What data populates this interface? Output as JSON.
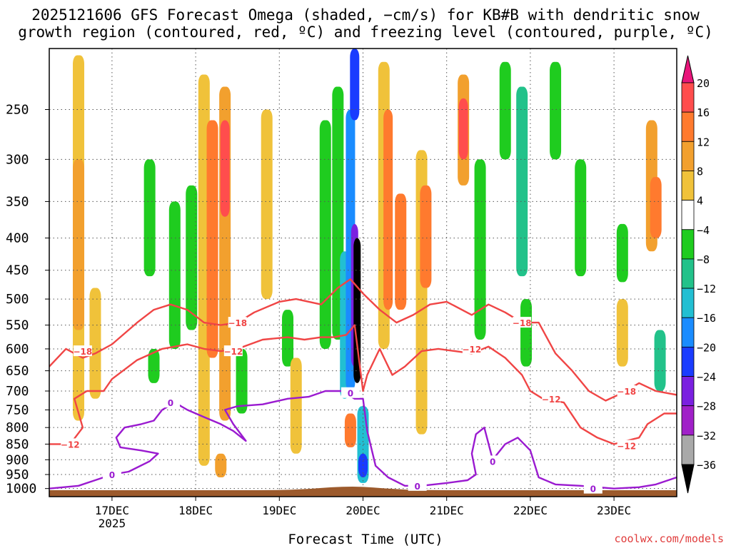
{
  "title_line1": "2025121606 GFS Forecast Omega (shaded, −cm/s) for KB#B with dendritic snow",
  "title_line2": "growth region (contoured, red, ºC) and freezing level (contoured, purple, ºC)",
  "credit": "coolwx.com/models",
  "chart_data": {
    "type": "heatmap",
    "title": "2025121606 GFS Forecast Omega (shaded, −cm/s) for KB#B with dendritic snow growth region (contoured, red, ºC) and freezing level (contoured, purple, ºC)",
    "xlabel": "Forecast Time (UTC)",
    "ylabel": "",
    "x_ticks": [
      "17DEC",
      "18DEC",
      "19DEC",
      "20DEC",
      "21DEC",
      "22DEC",
      "23DEC"
    ],
    "x_tick_sub": "2025",
    "xlim_days": [
      16.25,
      23.75
    ],
    "y_ticks": [
      250,
      300,
      350,
      400,
      450,
      500,
      550,
      600,
      650,
      700,
      750,
      800,
      850,
      900,
      950,
      1000
    ],
    "ylim_hpa": [
      200,
      1030
    ],
    "colorbar": {
      "labels": [
        "20",
        "16",
        "12",
        "8",
        "4",
        "−4",
        "−8",
        "−12",
        "−16",
        "−20",
        "−24",
        "−28",
        "−32",
        "−36"
      ],
      "colors": [
        "#ff4d4d",
        "#ff7a2e",
        "#f2a02e",
        "#f0c23a",
        "#efe35a",
        "#ffffff",
        "#1fcc1f",
        "#22c28a",
        "#22bfd2",
        "#1a8cff",
        "#1a3cff",
        "#7a20e0",
        "#a020c8",
        "#a9a9a9",
        "#000000"
      ],
      "top_color": "#e8157a",
      "bottom_color": "#000000"
    },
    "shaded_cells": [
      {
        "t": 16.6,
        "p0": 205,
        "p1": 780,
        "v": 6
      },
      {
        "t": 16.6,
        "p0": 300,
        "p1": 560,
        "v": 10
      },
      {
        "t": 16.8,
        "p0": 480,
        "p1": 720,
        "v": 6
      },
      {
        "t": 17.45,
        "p0": 300,
        "p1": 460,
        "v": -6
      },
      {
        "t": 17.5,
        "p0": 600,
        "p1": 680,
        "v": -6
      },
      {
        "t": 17.75,
        "p0": 350,
        "p1": 600,
        "v": -6
      },
      {
        "t": 17.95,
        "p0": 330,
        "p1": 560,
        "v": -6
      },
      {
        "t": 18.1,
        "p0": 220,
        "p1": 920,
        "v": 6
      },
      {
        "t": 18.2,
        "p0": 260,
        "p1": 620,
        "v": 12
      },
      {
        "t": 18.2,
        "p0": 520,
        "p1": 620,
        "v": 14
      },
      {
        "t": 18.35,
        "p0": 230,
        "p1": 780,
        "v": 8
      },
      {
        "t": 18.35,
        "p0": 260,
        "p1": 370,
        "v": 16
      },
      {
        "t": 18.55,
        "p0": 600,
        "p1": 760,
        "v": -6
      },
      {
        "t": 18.3,
        "p0": 880,
        "p1": 960,
        "v": 10
      },
      {
        "t": 18.85,
        "p0": 250,
        "p1": 500,
        "v": 6
      },
      {
        "t": 19.1,
        "p0": 520,
        "p1": 640,
        "v": -6
      },
      {
        "t": 19.2,
        "p0": 620,
        "p1": 880,
        "v": 6
      },
      {
        "t": 19.55,
        "p0": 260,
        "p1": 600,
        "v": -6
      },
      {
        "t": 19.7,
        "p0": 230,
        "p1": 580,
        "v": -6
      },
      {
        "t": 19.78,
        "p0": 420,
        "p1": 720,
        "v": -14
      },
      {
        "t": 19.85,
        "p0": 250,
        "p1": 700,
        "v": -18
      },
      {
        "t": 19.9,
        "p0": 380,
        "p1": 640,
        "v": -26
      },
      {
        "t": 19.93,
        "p0": 400,
        "p1": 680,
        "v": -36
      },
      {
        "t": 19.9,
        "p0": 200,
        "p1": 260,
        "v": -20
      },
      {
        "t": 19.85,
        "p0": 760,
        "p1": 860,
        "v": 12
      },
      {
        "t": 20.0,
        "p0": 740,
        "p1": 980,
        "v": -12
      },
      {
        "t": 20.0,
        "p0": 880,
        "p1": 960,
        "v": -20
      },
      {
        "t": 20.25,
        "p0": 210,
        "p1": 600,
        "v": 6
      },
      {
        "t": 20.3,
        "p0": 250,
        "p1": 520,
        "v": 14
      },
      {
        "t": 20.45,
        "p0": 340,
        "p1": 520,
        "v": 12
      },
      {
        "t": 20.7,
        "p0": 290,
        "p1": 820,
        "v": 6
      },
      {
        "t": 20.75,
        "p0": 330,
        "p1": 480,
        "v": 12
      },
      {
        "t": 21.2,
        "p0": 220,
        "p1": 330,
        "v": 8
      },
      {
        "t": 21.2,
        "p0": 240,
        "p1": 300,
        "v": 16
      },
      {
        "t": 21.4,
        "p0": 300,
        "p1": 580,
        "v": -6
      },
      {
        "t": 21.7,
        "p0": 210,
        "p1": 300,
        "v": -6
      },
      {
        "t": 21.9,
        "p0": 230,
        "p1": 460,
        "v": -10
      },
      {
        "t": 21.95,
        "p0": 500,
        "p1": 640,
        "v": -6
      },
      {
        "t": 22.3,
        "p0": 210,
        "p1": 300,
        "v": -6
      },
      {
        "t": 22.6,
        "p0": 300,
        "p1": 460,
        "v": -6
      },
      {
        "t": 23.1,
        "p0": 380,
        "p1": 470,
        "v": -6
      },
      {
        "t": 23.1,
        "p0": 500,
        "p1": 640,
        "v": 6
      },
      {
        "t": 23.45,
        "p0": 260,
        "p1": 420,
        "v": 8
      },
      {
        "t": 23.5,
        "p0": 320,
        "p1": 400,
        "v": 12
      },
      {
        "t": 23.55,
        "p0": 560,
        "p1": 700,
        "v": -10
      }
    ],
    "contours": [
      {
        "name": "dgz-upper",
        "label": "−18",
        "color": "#f04545",
        "points": [
          [
            16.25,
            640
          ],
          [
            16.45,
            600
          ],
          [
            16.65,
            620
          ],
          [
            16.8,
            610
          ],
          [
            17.0,
            590
          ],
          [
            17.3,
            545
          ],
          [
            17.5,
            520
          ],
          [
            17.7,
            510
          ],
          [
            17.9,
            520
          ],
          [
            18.1,
            545
          ],
          [
            18.3,
            550
          ],
          [
            18.5,
            545
          ],
          [
            18.7,
            525
          ],
          [
            19.0,
            505
          ],
          [
            19.2,
            500
          ],
          [
            19.5,
            510
          ],
          [
            19.7,
            480
          ],
          [
            19.85,
            465
          ],
          [
            20.0,
            490
          ],
          [
            20.2,
            520
          ],
          [
            20.4,
            545
          ],
          [
            20.6,
            530
          ],
          [
            20.8,
            510
          ],
          [
            21.0,
            505
          ],
          [
            21.3,
            530
          ],
          [
            21.5,
            510
          ],
          [
            21.7,
            525
          ],
          [
            21.9,
            545
          ],
          [
            22.1,
            545
          ],
          [
            22.3,
            610
          ],
          [
            22.5,
            650
          ],
          [
            22.7,
            700
          ],
          [
            22.9,
            725
          ],
          [
            23.1,
            705
          ],
          [
            23.3,
            680
          ],
          [
            23.5,
            700
          ],
          [
            23.75,
            710
          ]
        ],
        "label_pos": [
          [
            16.65,
            605
          ],
          [
            18.5,
            545
          ],
          [
            21.9,
            545
          ],
          [
            23.15,
            700
          ]
        ]
      },
      {
        "name": "dgz-lower",
        "label": "−12",
        "color": "#f04545",
        "points": [
          [
            16.25,
            850
          ],
          [
            16.5,
            850
          ],
          [
            16.65,
            800
          ],
          [
            16.55,
            720
          ],
          [
            16.7,
            700
          ],
          [
            16.9,
            700
          ],
          [
            17.0,
            670
          ],
          [
            17.3,
            625
          ],
          [
            17.6,
            600
          ],
          [
            17.9,
            590
          ],
          [
            18.1,
            600
          ],
          [
            18.3,
            605
          ],
          [
            18.5,
            600
          ],
          [
            18.8,
            580
          ],
          [
            19.1,
            575
          ],
          [
            19.3,
            580
          ],
          [
            19.5,
            575
          ],
          [
            19.65,
            575
          ],
          [
            19.8,
            570
          ],
          [
            19.9,
            550
          ],
          [
            20.0,
            700
          ],
          [
            20.05,
            660
          ],
          [
            20.2,
            600
          ],
          [
            20.35,
            660
          ],
          [
            20.5,
            640
          ],
          [
            20.7,
            605
          ],
          [
            20.9,
            600
          ],
          [
            21.1,
            605
          ],
          [
            21.3,
            610
          ],
          [
            21.5,
            595
          ],
          [
            21.7,
            620
          ],
          [
            21.9,
            660
          ],
          [
            22.0,
            700
          ],
          [
            22.15,
            720
          ],
          [
            22.4,
            730
          ],
          [
            22.6,
            800
          ],
          [
            22.8,
            830
          ],
          [
            23.0,
            850
          ],
          [
            23.3,
            830
          ],
          [
            23.4,
            790
          ],
          [
            23.6,
            760
          ],
          [
            23.75,
            760
          ]
        ],
        "label_pos": [
          [
            16.5,
            850
          ],
          [
            18.45,
            605
          ],
          [
            21.3,
            600
          ],
          [
            22.25,
            720
          ],
          [
            23.15,
            855
          ]
        ]
      },
      {
        "name": "freezing-level",
        "label": "0",
        "color": "#9a1ad0",
        "points": [
          [
            16.25,
            1000
          ],
          [
            16.6,
            990
          ],
          [
            16.85,
            965
          ],
          [
            17.0,
            950
          ],
          [
            17.2,
            940
          ],
          [
            17.45,
            905
          ],
          [
            17.55,
            880
          ],
          [
            17.35,
            870
          ],
          [
            17.1,
            860
          ],
          [
            17.05,
            830
          ],
          [
            17.15,
            800
          ],
          [
            17.35,
            790
          ],
          [
            17.5,
            780
          ],
          [
            17.6,
            750
          ],
          [
            17.75,
            730
          ],
          [
            17.9,
            750
          ],
          [
            18.1,
            770
          ],
          [
            18.3,
            790
          ],
          [
            18.45,
            810
          ],
          [
            18.6,
            840
          ],
          [
            18.45,
            790
          ],
          [
            18.35,
            750
          ],
          [
            18.5,
            740
          ],
          [
            18.8,
            735
          ],
          [
            19.1,
            720
          ],
          [
            19.35,
            715
          ],
          [
            19.55,
            700
          ],
          [
            19.75,
            700
          ],
          [
            19.9,
            720
          ],
          [
            20.0,
            720
          ],
          [
            20.05,
            810
          ],
          [
            20.15,
            920
          ],
          [
            20.3,
            960
          ],
          [
            20.5,
            990
          ],
          [
            20.7,
            990
          ],
          [
            21.0,
            980
          ],
          [
            21.25,
            970
          ],
          [
            21.35,
            950
          ],
          [
            21.3,
            880
          ],
          [
            21.35,
            820
          ],
          [
            21.45,
            800
          ],
          [
            21.55,
            900
          ],
          [
            21.7,
            850
          ],
          [
            21.85,
            830
          ],
          [
            22.0,
            870
          ],
          [
            22.1,
            960
          ],
          [
            22.3,
            985
          ],
          [
            22.6,
            990
          ],
          [
            23.0,
            1000
          ],
          [
            23.3,
            995
          ],
          [
            23.5,
            985
          ],
          [
            23.75,
            960
          ]
        ],
        "label_pos": [
          [
            17.0,
            950
          ],
          [
            17.7,
            730
          ],
          [
            19.85,
            705
          ],
          [
            20.65,
            990
          ],
          [
            21.55,
            905
          ],
          [
            22.75,
            1000
          ]
        ]
      }
    ]
  }
}
